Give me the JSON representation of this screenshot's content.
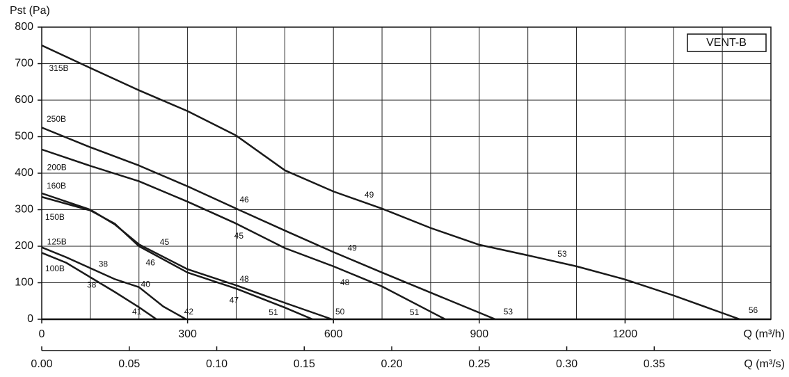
{
  "chart_data": {
    "type": "line",
    "y_label": "Pst (Pa)",
    "x_label": "Q (m³/h)",
    "x2_label": "Q (m³/s)",
    "box_label": "VENT-B",
    "xlim": [
      0,
      1500
    ],
    "ylim": [
      0,
      800
    ],
    "x2lim": [
      0,
      0.41667
    ],
    "xticks": [
      0,
      300,
      600,
      900,
      1200
    ],
    "xgrid": [
      100,
      200,
      300,
      400,
      500,
      600,
      700,
      800,
      900,
      1000,
      1100,
      1200,
      1300,
      1400
    ],
    "yticks": [
      0,
      100,
      200,
      300,
      400,
      500,
      600,
      700,
      800
    ],
    "x2ticks": [
      {
        "value": 0,
        "label": "0.00"
      },
      {
        "value": 0.05,
        "label": "0.05"
      },
      {
        "value": 0.1,
        "label": "0.10"
      },
      {
        "value": 0.15,
        "label": "0.15"
      },
      {
        "value": 0.2,
        "label": "0.20"
      },
      {
        "value": 0.25,
        "label": "0.25"
      },
      {
        "value": 0.3,
        "label": "0.30"
      },
      {
        "value": 0.35,
        "label": "0.35"
      }
    ],
    "grid": true,
    "series": [
      {
        "name": "315B",
        "color": "#1a1a1a",
        "name_pos": [
          15,
          686
        ],
        "x": [
          0,
          100,
          200,
          300,
          400,
          500,
          600,
          700,
          800,
          900,
          1000,
          1100,
          1200,
          1300,
          1436
        ],
        "values": [
          750,
          688,
          627,
          570,
          503,
          408,
          350,
          303,
          250,
          204,
          175,
          145,
          109,
          65,
          0
        ]
      },
      {
        "name": "250B",
        "color": "#1a1a1a",
        "name_pos": [
          10,
          547
        ],
        "x": [
          0,
          100,
          200,
          300,
          400,
          500,
          600,
          700,
          800,
          933
        ],
        "values": [
          525,
          471,
          421,
          364,
          303,
          243,
          184,
          128,
          73,
          0
        ]
      },
      {
        "name": "200B",
        "color": "#1a1a1a",
        "name_pos": [
          11,
          415
        ],
        "x": [
          0,
          100,
          200,
          300,
          400,
          500,
          600,
          700,
          830
        ],
        "values": [
          465,
          420,
          378,
          322,
          262,
          195,
          145,
          90,
          0
        ]
      },
      {
        "name": "160B",
        "color": "#1a1a1a",
        "name_pos": [
          10,
          364
        ],
        "x": [
          0,
          100,
          150,
          200,
          300,
          400,
          500,
          597
        ],
        "values": [
          345,
          300,
          260,
          205,
          137,
          93,
          45,
          0
        ]
      },
      {
        "name": "150B",
        "color": "#1a1a1a",
        "name_pos": [
          7,
          278
        ],
        "x": [
          0,
          100,
          150,
          200,
          300,
          400,
          500,
          557
        ],
        "values": [
          335,
          298,
          262,
          200,
          128,
          84,
          32,
          0
        ]
      },
      {
        "name": "125B",
        "color": "#1a1a1a",
        "name_pos": [
          11,
          211
        ],
        "x": [
          0,
          50,
          100,
          150,
          200,
          250,
          297
        ],
        "values": [
          197,
          170,
          140,
          110,
          88,
          35,
          0
        ]
      },
      {
        "name": "100B",
        "color": "#1a1a1a",
        "name_pos": [
          7,
          137
        ],
        "x": [
          0,
          50,
          100,
          150,
          200,
          236
        ],
        "values": [
          182,
          155,
          115,
          75,
          33,
          0
        ]
      }
    ],
    "annotations": [
      {
        "text": "49",
        "x": 664,
        "y": 339
      },
      {
        "text": "53",
        "x": 1061,
        "y": 177
      },
      {
        "text": "56",
        "x": 1454,
        "y": 23
      },
      {
        "text": "46",
        "x": 407,
        "y": 326
      },
      {
        "text": "49",
        "x": 629,
        "y": 194
      },
      {
        "text": "53",
        "x": 950,
        "y": 19
      },
      {
        "text": "45",
        "x": 396,
        "y": 227
      },
      {
        "text": "48",
        "x": 614,
        "y": 99
      },
      {
        "text": "51",
        "x": 757,
        "y": 17
      },
      {
        "text": "45",
        "x": 243,
        "y": 210
      },
      {
        "text": "46",
        "x": 214,
        "y": 154
      },
      {
        "text": "48",
        "x": 407,
        "y": 109
      },
      {
        "text": "47",
        "x": 386,
        "y": 51
      },
      {
        "text": "50",
        "x": 604,
        "y": 19
      },
      {
        "text": "51",
        "x": 467,
        "y": 17
      },
      {
        "text": "38",
        "x": 117,
        "y": 150
      },
      {
        "text": "40",
        "x": 204,
        "y": 95
      },
      {
        "text": "42",
        "x": 293,
        "y": 19
      },
      {
        "text": "38",
        "x": 93,
        "y": 93
      },
      {
        "text": "41",
        "x": 186,
        "y": 19
      }
    ]
  }
}
